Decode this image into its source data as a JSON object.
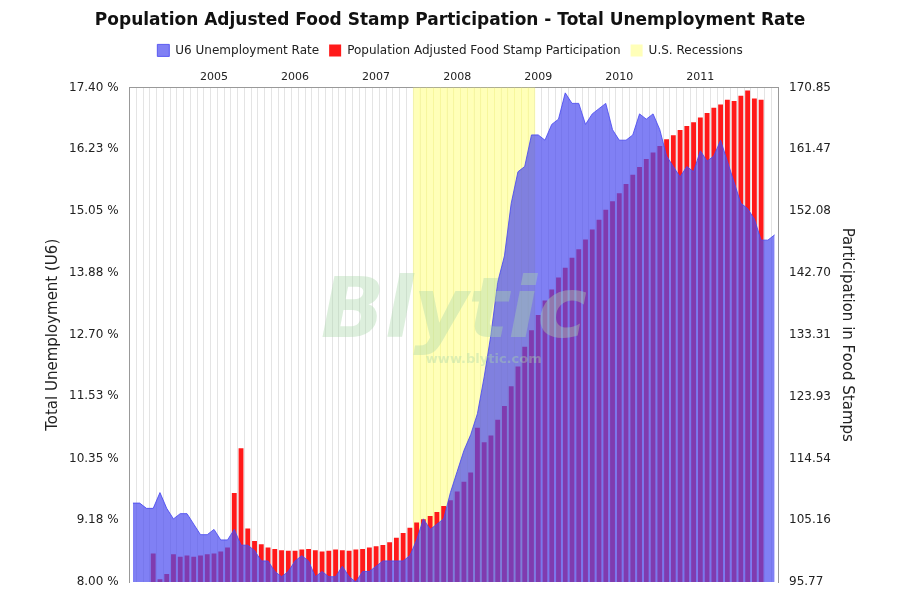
{
  "chart_data": {
    "type": "bar",
    "title": "Population Adjusted Food Stamp Participation - Total Unemployment Rate",
    "legend": "top",
    "grid": true,
    "y_label": "Total Unemployment (U6)",
    "y2_label": "Participation in Food Stamps",
    "annotations": [
      "Blytic",
      "www.blytic.com"
    ],
    "categories": [
      null,
      null,
      null,
      null,
      null,
      null,
      null,
      null,
      null,
      null,
      null,
      null,
      "2005",
      null,
      null,
      null,
      null,
      null,
      null,
      null,
      null,
      null,
      null,
      null,
      "2006",
      null,
      null,
      null,
      null,
      null,
      null,
      null,
      null,
      null,
      null,
      null,
      "2007",
      null,
      null,
      null,
      null,
      null,
      null,
      null,
      null,
      null,
      null,
      null,
      "2008",
      null,
      null,
      null,
      null,
      null,
      null,
      null,
      null,
      null,
      null,
      null,
      "2009",
      null,
      null,
      null,
      null,
      null,
      null,
      null,
      null,
      null,
      null,
      null,
      "2010",
      null,
      null,
      null,
      null,
      null,
      null,
      null,
      null,
      null,
      null,
      null,
      "2011",
      null,
      null,
      null,
      null,
      null,
      null,
      null,
      null,
      null,
      null,
      null
    ],
    "ylim": [
      8,
      17.4
    ],
    "yticks": [
      {
        "value": 8,
        "label": "8.00 %"
      },
      {
        "value": 9.18,
        "label": "9.18 %"
      },
      {
        "value": 10.35,
        "label": "10.35 %"
      },
      {
        "value": 11.53,
        "label": "11.53 %"
      },
      {
        "value": 12.7,
        "label": "12.70 %"
      },
      {
        "value": 13.88,
        "label": "13.88 %"
      },
      {
        "value": 15.05,
        "label": "15.05 %"
      },
      {
        "value": 16.23,
        "label": "16.23 %"
      },
      {
        "value": 17.4,
        "label": "17.40 %"
      }
    ],
    "y2lim": [
      95.77,
      170.85
    ],
    "y2ticks": [
      95.77,
      105.16,
      114.54,
      123.93,
      133.31,
      {
        "value": 142.7,
        "label": "142.70"
      },
      152.08,
      161.47,
      170.85
    ],
    "series": [
      {
        "name": "Population Adjusted Food Stamp Participation",
        "color": "#ff1a1a",
        "type": "bar",
        "axis": "y2",
        "values": [
          null,
          null,
          null,
          100.1,
          96.2,
          97.0,
          100.0,
          99.6,
          99.8,
          99.6,
          99.8,
          100.0,
          100.1,
          100.4,
          101.0,
          109.3,
          116.1,
          103.9,
          102.0,
          101.5,
          101.0,
          100.8,
          100.6,
          100.5,
          100.5,
          100.7,
          100.8,
          100.6,
          100.4,
          100.5,
          100.7,
          100.6,
          100.5,
          100.7,
          100.8,
          101.0,
          101.2,
          101.4,
          101.8,
          102.5,
          103.2,
          104.0,
          104.8,
          105.3,
          105.8,
          106.4,
          107.3,
          108.2,
          109.5,
          111.0,
          112.4,
          119.2,
          117.0,
          118.0,
          120.4,
          122.5,
          125.5,
          128.5,
          131.5,
          134.0,
          136.3,
          138.5,
          140.2,
          142.0,
          143.5,
          145.0,
          146.3,
          147.8,
          149.3,
          150.8,
          152.3,
          153.6,
          154.8,
          156.2,
          157.6,
          158.8,
          160.0,
          161.0,
          162.0,
          163.0,
          163.6,
          164.4,
          165.0,
          165.6,
          166.3,
          167.0,
          167.8,
          168.3,
          169.0,
          168.8,
          169.6,
          170.4,
          169.2,
          169.0,
          null,
          null
        ]
      },
      {
        "name": "U6 Unemployment Rate",
        "color": "#4a4af0",
        "type": "area",
        "values": [
          9.5,
          9.5,
          9.4,
          9.4,
          9.7,
          9.4,
          9.2,
          9.3,
          9.3,
          9.1,
          8.9,
          8.9,
          9.0,
          8.8,
          8.8,
          9.0,
          8.7,
          8.7,
          8.6,
          8.4,
          8.4,
          8.2,
          8.1,
          8.2,
          8.4,
          8.5,
          8.4,
          8.1,
          8.2,
          8.1,
          8.1,
          8.3,
          8.1,
          8.0,
          8.2,
          8.2,
          8.3,
          8.4,
          8.4,
          8.4,
          8.4,
          8.5,
          8.8,
          9.2,
          9.0,
          9.1,
          9.2,
          9.7,
          10.1,
          10.5,
          10.8,
          11.2,
          11.9,
          12.7,
          13.7,
          14.2,
          15.2,
          15.8,
          15.9,
          16.5,
          16.5,
          16.4,
          16.7,
          16.8,
          17.3,
          17.1,
          17.1,
          16.7,
          16.9,
          17.0,
          17.1,
          16.6,
          16.4,
          16.4,
          16.5,
          16.9,
          16.8,
          16.9,
          16.6,
          16.1,
          15.9,
          15.7,
          15.9,
          15.8,
          16.2,
          16.0,
          16.1,
          16.4,
          16.0,
          15.6,
          15.2,
          15.1,
          14.9,
          14.5,
          14.5,
          14.6
        ]
      },
      {
        "name": "U.S. Recessions",
        "color": "#ffff80",
        "type": "bar",
        "values": [
          null,
          null,
          null,
          null,
          null,
          null,
          null,
          null,
          null,
          null,
          null,
          null,
          null,
          null,
          null,
          null,
          null,
          null,
          null,
          null,
          null,
          null,
          null,
          null,
          null,
          null,
          null,
          null,
          null,
          null,
          null,
          null,
          null,
          null,
          null,
          null,
          null,
          null,
          null,
          null,
          null,
          null,
          17.4,
          17.4,
          17.4,
          17.4,
          17.4,
          17.4,
          17.4,
          17.4,
          17.4,
          17.4,
          17.4,
          17.4,
          17.4,
          17.4,
          17.4,
          17.4,
          17.4,
          17.4,
          null,
          null,
          null,
          null,
          null,
          null,
          null,
          null,
          null,
          null,
          null,
          null,
          null,
          null,
          null,
          null,
          null,
          null,
          null,
          null,
          null,
          null,
          null,
          null,
          null,
          null,
          null,
          null,
          null,
          null,
          null,
          null,
          null,
          null,
          null,
          null
        ]
      }
    ]
  }
}
